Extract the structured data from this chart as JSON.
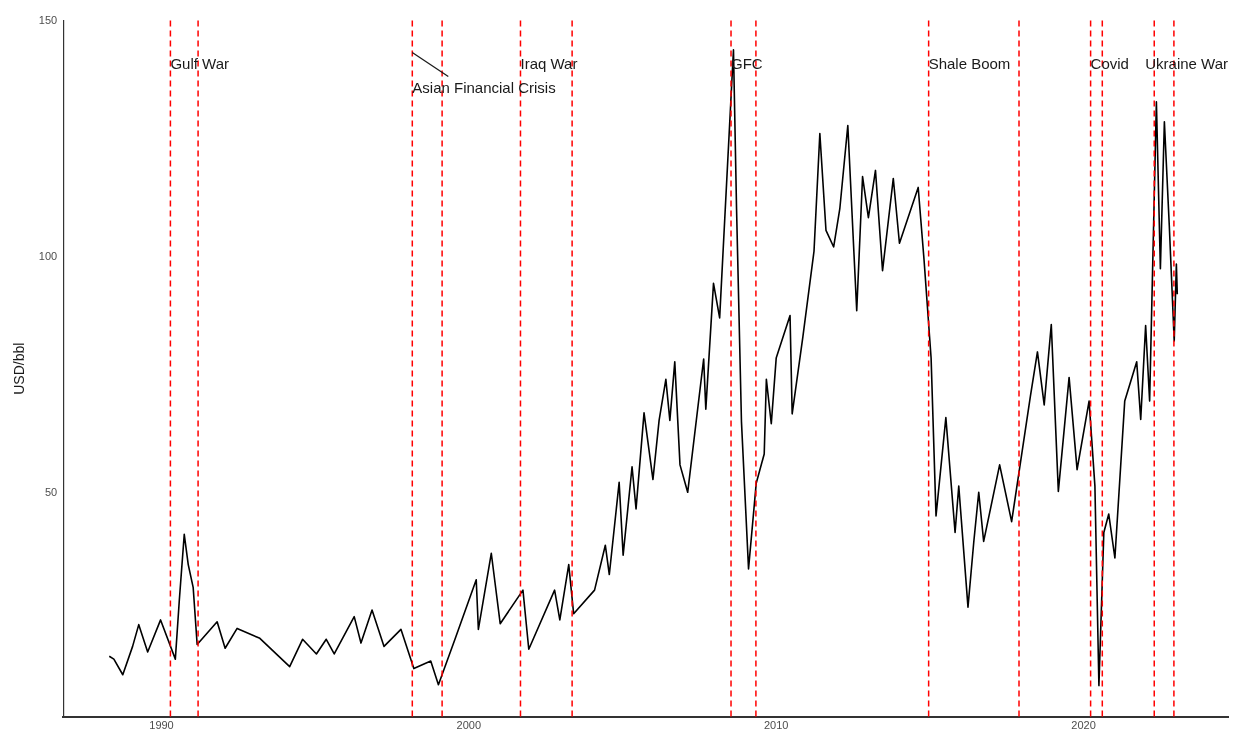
{
  "chart_data": {
    "type": "line",
    "ylabel": "USD/bbl",
    "xlim": [
      1986.8,
      2024.7
    ],
    "xticks": [
      1990,
      2000,
      2010,
      2020
    ],
    "ylim": [
      2.7,
      150
    ],
    "yticks": [
      50,
      100,
      150
    ],
    "grid": false,
    "legend": false,
    "marker": "none",
    "line_style": "solid",
    "series": [
      {
        "color": "#000000",
        "x": [
          1988.3,
          1988.45,
          1988.74,
          1989.06,
          1989.26,
          1989.55,
          1989.97,
          1990.45,
          1990.58,
          1990.74,
          1990.87,
          1991.03,
          1991.16,
          1991.81,
          1992.07,
          1992.46,
          1993.2,
          1994.17,
          1994.59,
          1995.04,
          1995.36,
          1995.62,
          1996.27,
          1996.49,
          1996.85,
          1997.24,
          1997.79,
          1998.21,
          1998.76,
          1999.01,
          1999.56,
          2000.24,
          2000.31,
          2000.73,
          2001.02,
          2001.76,
          2001.95,
          2002.79,
          2002.96,
          2003.25,
          2003.41,
          2004.09,
          2004.44,
          2004.57,
          2004.89,
          2005.02,
          2005.31,
          2005.44,
          2005.7,
          2005.99,
          2006.19,
          2006.41,
          2006.54,
          2006.7,
          2006.87,
          2007.12,
          2007.64,
          2007.71,
          2007.96,
          2008.16,
          2008.61,
          2008.71,
          2008.87,
          2009.1,
          2009.35,
          2009.61,
          2009.68,
          2009.84,
          2010.0,
          2010.45,
          2010.52,
          2010.87,
          2011.23,
          2011.42,
          2011.62,
          2011.87,
          2012.07,
          2012.33,
          2012.62,
          2012.81,
          2013.0,
          2013.23,
          2013.46,
          2013.81,
          2014.01,
          2014.62,
          2014.81,
          2015.04,
          2015.2,
          2015.52,
          2015.82,
          2015.94,
          2016.24,
          2016.43,
          2016.59,
          2016.75,
          2017.27,
          2017.66,
          2018.27,
          2018.5,
          2018.72,
          2018.95,
          2019.18,
          2019.53,
          2019.79,
          2020.18,
          2020.37,
          2020.5,
          2020.66,
          2020.82,
          2021.02,
          2021.34,
          2021.73,
          2021.86,
          2022.02,
          2022.15,
          2022.37,
          2022.5,
          2022.63,
          2022.79,
          2022.95,
          2023.02,
          2023.05
        ],
        "values": [
          15.5,
          14.9,
          11.6,
          17.6,
          22.2,
          16.4,
          23.2,
          14.9,
          27.4,
          41.3,
          34.9,
          30.1,
          18,
          22.8,
          17.2,
          21.4,
          19.3,
          13.3,
          19.1,
          16,
          19.1,
          16,
          23.9,
          18.3,
          25.3,
          17.6,
          21.2,
          12.9,
          14.5,
          9.5,
          19.3,
          31.7,
          21.2,
          37.3,
          22.4,
          29.5,
          17,
          29.5,
          23.2,
          34.9,
          24.5,
          29.5,
          39,
          32.8,
          52.3,
          36.9,
          55.6,
          46.7,
          67,
          52.9,
          65.4,
          74.1,
          65.4,
          77.8,
          56,
          50.2,
          78.4,
          67.8,
          94.4,
          87.1,
          143.8,
          110.2,
          65.1,
          34,
          52.1,
          58.3,
          74.1,
          64.7,
          78.6,
          87.6,
          66.8,
          83.2,
          101.2,
          126.1,
          105.6,
          102.1,
          110.2,
          127.8,
          88.6,
          117,
          108.3,
          118.3,
          97.1,
          116.6,
          102.9,
          114.7,
          99.4,
          78.6,
          45.2,
          66,
          41.7,
          51.5,
          25.9,
          39.8,
          50.2,
          39.8,
          56,
          44,
          70.5,
          79.9,
          68.7,
          85.7,
          50.4,
          74.5,
          55,
          69.5,
          51.5,
          9.3,
          41.7,
          45.6,
          36.3,
          69.5,
          77.8,
          65.6,
          85.5,
          69.5,
          132.8,
          97.5,
          128.6,
          106.6,
          82.2,
          98.5,
          92.1
        ]
      }
    ],
    "ref_lines": [
      {
        "axis": "x",
        "value": 1990.29,
        "label": "Gulf War",
        "color": "#ff0000",
        "line_style": "dashed"
      },
      {
        "axis": "x",
        "value": 1991.19,
        "color": "#ff0000",
        "line_style": "dashed"
      },
      {
        "axis": "x",
        "value": 1998.16,
        "label": "Asian Financial Crisis",
        "color": "#ff0000",
        "line_style": "dashed"
      },
      {
        "axis": "x",
        "value": 1999.13,
        "color": "#ff0000",
        "line_style": "dashed"
      },
      {
        "axis": "x",
        "value": 2001.68,
        "label": "Iraq War",
        "color": "#ff0000",
        "line_style": "dashed"
      },
      {
        "axis": "x",
        "value": 2003.36,
        "color": "#ff0000",
        "line_style": "dashed"
      },
      {
        "axis": "x",
        "value": 2008.53,
        "label": "GFC",
        "color": "#ff0000",
        "line_style": "dashed"
      },
      {
        "axis": "x",
        "value": 2009.34,
        "color": "#ff0000",
        "line_style": "dashed"
      },
      {
        "axis": "x",
        "value": 2014.96,
        "label": "Shale Boom",
        "color": "#ff0000",
        "line_style": "dashed"
      },
      {
        "axis": "x",
        "value": 2017.9,
        "color": "#ff0000",
        "line_style": "dashed"
      },
      {
        "axis": "x",
        "value": 2020.23,
        "label": "Covid",
        "color": "#ff0000",
        "line_style": "dashed"
      },
      {
        "axis": "x",
        "value": 2020.61,
        "color": "#ff0000",
        "line_style": "dashed"
      },
      {
        "axis": "x",
        "value": 2022.3,
        "label": "Ukraine War",
        "color": "#ff0000",
        "line_style": "dashed"
      },
      {
        "axis": "x",
        "value": 2022.94,
        "color": "#ff0000",
        "line_style": "dashed"
      }
    ]
  }
}
